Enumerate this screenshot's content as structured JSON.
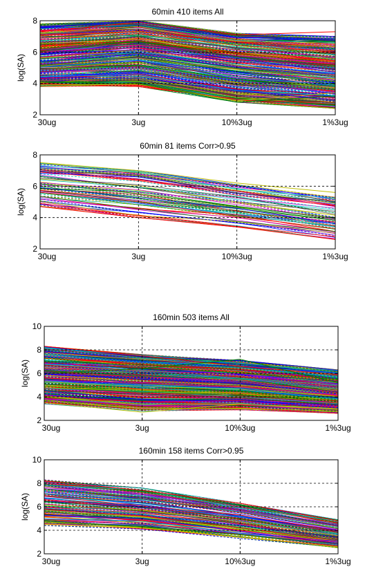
{
  "palette": [
    "#0000ff",
    "#008000",
    "#ff0000",
    "#00bfbf",
    "#bf00bf",
    "#bfbf00",
    "#404040"
  ],
  "chart_data": [
    {
      "type": "line",
      "title": "60min 410 items All",
      "ylabel": "log(SA)",
      "xlabel": "",
      "categories": [
        "30ug",
        "3ug",
        "10%3ug",
        "1%3ug"
      ],
      "y_ticks": [
        "2",
        "4",
        "6",
        "8"
      ],
      "ylim": [
        2,
        8
      ],
      "grid": "dashed at interior ticks",
      "series_count": 410,
      "band": {
        "high": [
          7.8,
          8.0,
          7.2,
          7.0
        ],
        "low": [
          3.8,
          3.8,
          2.8,
          2.4
        ],
        "center": [
          5.6,
          6.1,
          5.3,
          4.6
        ]
      },
      "notable": [
        {
          "values": [
            7.3,
            7.9,
            7.1,
            7.3
          ]
        },
        {
          "values": [
            3.9,
            3.95,
            2.9,
            3.4
          ]
        },
        {
          "values": [
            4.1,
            4.0,
            2.8,
            3.2
          ]
        }
      ]
    },
    {
      "type": "line",
      "title": "60min 81 items Corr>0.95",
      "ylabel": "log(SA)",
      "xlabel": "",
      "categories": [
        "30ug",
        "3ug",
        "10%3ug",
        "1%3ug"
      ],
      "y_ticks": [
        "2",
        "4",
        "6",
        "8"
      ],
      "ylim": [
        2,
        8
      ],
      "grid": "dashed at interior ticks",
      "series_count": 81,
      "band": {
        "high": [
          7.5,
          7.0,
          6.1,
          5.3
        ],
        "low": [
          4.7,
          4.0,
          3.4,
          2.6
        ],
        "center": [
          6.0,
          5.5,
          4.7,
          3.9
        ]
      },
      "notable": [
        {
          "values": [
            4.7,
            4.0,
            3.4,
            2.6
          ]
        },
        {
          "values": [
            7.5,
            7.0,
            6.2,
            5.6
          ]
        }
      ]
    },
    {
      "type": "line",
      "title": "160min 503 items All",
      "ylabel": "log(SA)",
      "xlabel": "",
      "categories": [
        "30ug",
        "3ug",
        "10%3ug",
        "1%3ug"
      ],
      "y_ticks": [
        "2",
        "4",
        "6",
        "8",
        "10"
      ],
      "ylim": [
        2,
        10
      ],
      "grid": "dashed at interior ticks",
      "series_count": 503,
      "band": {
        "high": [
          8.3,
          7.6,
          7.1,
          6.3
        ],
        "low": [
          3.4,
          2.8,
          2.9,
          2.6
        ],
        "center": [
          5.8,
          5.4,
          5.0,
          4.2
        ]
      },
      "notable": [
        {
          "values": [
            8.3,
            7.5,
            6.6,
            5.9
          ]
        },
        {
          "values": [
            3.5,
            2.7,
            3.4,
            3.0
          ]
        },
        {
          "values": [
            6.0,
            6.4,
            7.2,
            5.2
          ]
        }
      ]
    },
    {
      "type": "line",
      "title": "160min 158 items Corr>0.95",
      "ylabel": "log(SA)",
      "xlabel": "",
      "categories": [
        "30ug",
        "3ug",
        "10%3ug",
        "1%3ug"
      ],
      "y_ticks": [
        "2",
        "4",
        "6",
        "8",
        "10"
      ],
      "ylim": [
        2,
        10
      ],
      "grid": "dashed at interior ticks",
      "series_count": 158,
      "band": {
        "high": [
          8.3,
          7.6,
          6.3,
          4.9
        ],
        "low": [
          4.4,
          4.1,
          3.3,
          2.5
        ],
        "center": [
          6.2,
          5.6,
          4.7,
          3.5
        ]
      },
      "notable": [
        {
          "values": [
            8.2,
            7.4,
            6.3,
            4.8
          ]
        },
        {
          "values": [
            4.5,
            4.2,
            3.4,
            2.6
          ]
        }
      ]
    }
  ]
}
